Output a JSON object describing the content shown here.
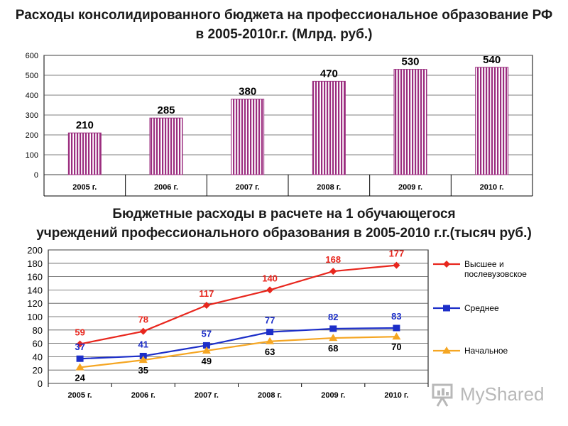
{
  "charts": [
    {
      "title_line1": "Расходы консолидированного бюджета на профессиональное образование РФ",
      "title_line2": "в 2005-2010г.г. (Млрд. руб.)",
      "chart_data": {
        "type": "bar",
        "categories": [
          "2005 г.",
          "2006 г.",
          "2007 г.",
          "2008 г.",
          "2009 г.",
          "2010 г."
        ],
        "values": [
          210,
          285,
          380,
          470,
          530,
          540
        ],
        "data_labels": [
          "210",
          "285",
          "380",
          "470",
          "530",
          "540"
        ],
        "ylim": [
          0,
          600
        ],
        "yticks": [
          0,
          100,
          200,
          300,
          400,
          500,
          600
        ],
        "grid": true,
        "bar_color": "#9b2d7f"
      }
    },
    {
      "title_line1": "Бюджетные расходы в расчете на 1 обучающегося",
      "title_line2": "учреждений профессионального образования в 2005-2010 г.г.(тысяч руб.)",
      "chart_data": {
        "type": "line",
        "categories": [
          "2005 г.",
          "2006 г.",
          "2007 г.",
          "2008 г.",
          "2009 г.",
          "2010 г."
        ],
        "ylim": [
          0,
          200
        ],
        "yticks": [
          0,
          20,
          40,
          60,
          80,
          100,
          120,
          140,
          160,
          180,
          200
        ],
        "grid": true,
        "legend_position": "right",
        "series": [
          {
            "name": "Высшее и послевузовское",
            "name_lines": [
              "Высшее и",
              "послевузовское"
            ],
            "values": [
              59,
              78,
              117,
              140,
              168,
              177
            ],
            "labels": [
              "59",
              "78",
              "117",
              "140",
              "168",
              "177"
            ],
            "color": "#e8261d",
            "marker": "diamond"
          },
          {
            "name": "Среднее",
            "name_lines": [
              "Среднее"
            ],
            "values": [
              37,
              41,
              57,
              77,
              82,
              83
            ],
            "labels": [
              "37",
              "41",
              "57",
              "77",
              "82",
              "83"
            ],
            "color": "#1c2ec8",
            "marker": "square"
          },
          {
            "name": "Начальное",
            "name_lines": [
              "Начальное"
            ],
            "values": [
              24,
              35,
              49,
              63,
              68,
              70
            ],
            "labels": [
              "24",
              "35",
              "49",
              "63",
              "68",
              "70"
            ],
            "color": "#f5a623",
            "marker": "triangle"
          }
        ]
      }
    }
  ],
  "watermark": {
    "text": "MyShared",
    "icon": "presentation-board-icon"
  }
}
